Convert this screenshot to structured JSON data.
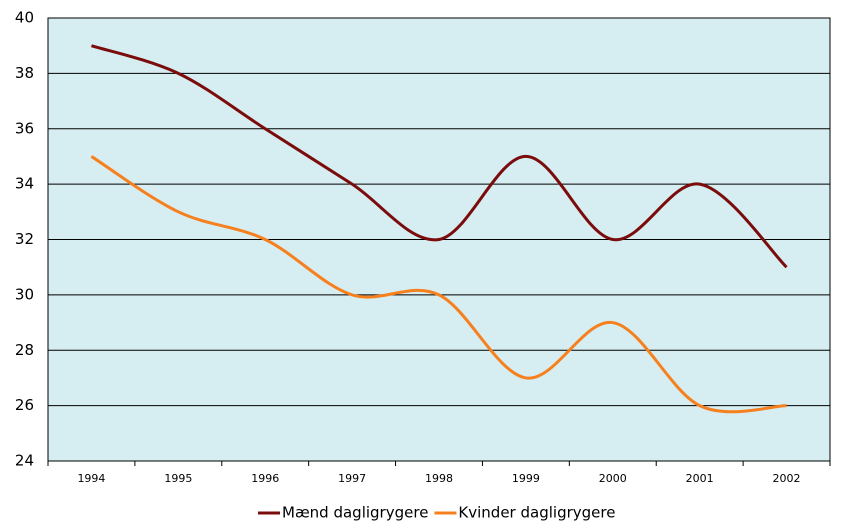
{
  "chart_data": {
    "type": "line",
    "categories": [
      "1994",
      "1995",
      "1996",
      "1997",
      "1998",
      "1999",
      "2000",
      "2001",
      "2002"
    ],
    "series": [
      {
        "name": "Mænd dagligrygere",
        "color": "#7b0c0c",
        "values": [
          39,
          38,
          36,
          34,
          32,
          35,
          32,
          34,
          31
        ]
      },
      {
        "name": "Kvinder dagligrygere",
        "color": "#f7801e",
        "values": [
          35,
          33,
          32,
          30,
          30,
          27,
          29,
          26,
          26
        ]
      }
    ],
    "ylim": [
      24,
      40
    ],
    "yticks": [
      24,
      26,
      28,
      30,
      32,
      34,
      36,
      38,
      40
    ],
    "grid": true,
    "legend": "bottom",
    "smooth": true
  }
}
